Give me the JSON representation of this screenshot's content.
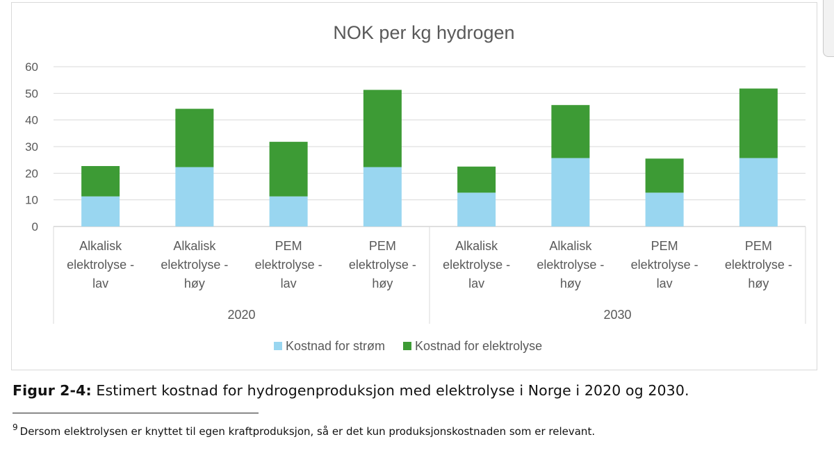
{
  "chart_data": {
    "type": "bar",
    "stacked": true,
    "title": "NOK per kg hydrogen",
    "ylim": [
      0,
      60
    ],
    "yticks": [
      0,
      10,
      20,
      30,
      40,
      50,
      60
    ],
    "grid": true,
    "legend_position": "bottom",
    "groups": [
      {
        "label": "2020",
        "categories": [
          "Alkalisk elektrolyse - lav",
          "Alkalisk elektrolyse - høy",
          "PEM elektrolyse - lav",
          "PEM elektrolyse - høy"
        ]
      },
      {
        "label": "2030",
        "categories": [
          "Alkalisk elektrolyse - lav",
          "Alkalisk elektrolyse - høy",
          "PEM elektrolyse - lav",
          "PEM elektrolyse - høy"
        ]
      }
    ],
    "category_lines": [
      [
        "Alkalisk",
        "elektrolyse -",
        "lav"
      ],
      [
        "Alkalisk",
        "elektrolyse -",
        "høy"
      ],
      [
        "PEM",
        "elektrolyse -",
        "lav"
      ],
      [
        "PEM",
        "elektrolyse -",
        "høy"
      ],
      [
        "Alkalisk",
        "elektrolyse -",
        "lav"
      ],
      [
        "Alkalisk",
        "elektrolyse -",
        "høy"
      ],
      [
        "PEM",
        "elektrolyse -",
        "lav"
      ],
      [
        "PEM",
        "elektrolyse -",
        "høy"
      ]
    ],
    "series": [
      {
        "name": "Kostnad for strøm",
        "color": "#99d6f0",
        "values": [
          11.3,
          22.3,
          11.3,
          22.3,
          12.7,
          25.7,
          12.7,
          25.7
        ]
      },
      {
        "name": "Kostnad for elektrolyse",
        "color": "#3d9b35",
        "values": [
          11.4,
          21.9,
          20.5,
          29.0,
          9.8,
          19.9,
          12.8,
          26.1
        ]
      }
    ]
  },
  "caption": {
    "label": "Figur 2-4:",
    "text": " Estimert kostnad for hydrogenproduksjon med elektrolyse i Norge i 2020 og 2030."
  },
  "footnote": {
    "marker": "9",
    "text": "Dersom elektrolysen er knyttet til egen kraftproduksjon, så er det kun produksjonskostnaden som er relevant."
  }
}
